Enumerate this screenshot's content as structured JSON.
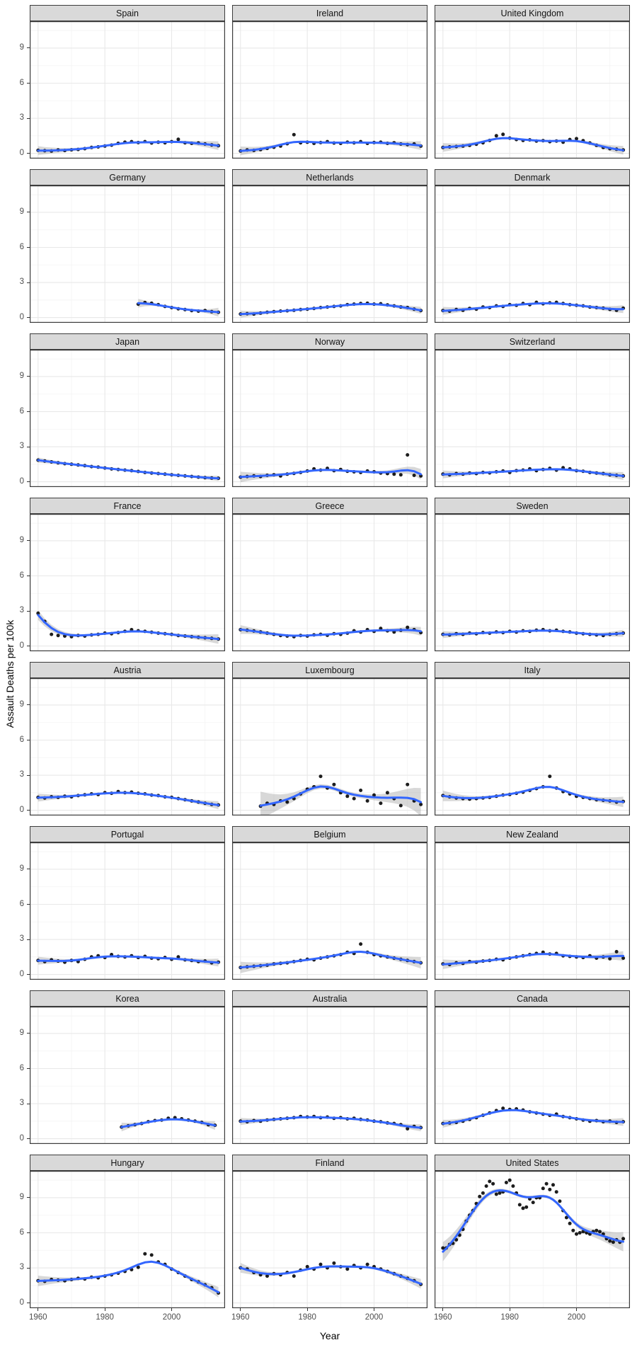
{
  "figure": {
    "ylab": "Assault Deaths per 100k",
    "xlab": "Year"
  },
  "axes": {
    "y_ticks": [
      0,
      3,
      6,
      9
    ],
    "x_ticks": [
      1960,
      1980,
      2000
    ],
    "y_minor": [
      1.5,
      4.5,
      7.5,
      10.5
    ],
    "x_minor": [
      1970,
      1990,
      2010
    ],
    "ylim": [
      -0.45,
      11.3
    ],
    "xlim": [
      1957.5,
      2016
    ]
  },
  "style": {
    "smooth_color": "#3366FF",
    "ribbon_color": "#7f7f7f",
    "point_color": "#0a0a0a",
    "strip_bg": "#d9d9d9",
    "strip_border": "#3c3c3c",
    "panel_border": "#3c3c3c",
    "grid_major": "#e8e8e8",
    "grid_minor": "#f4f4f4",
    "tick_color": "#333333",
    "tick_label_color": "#4d4d4d"
  },
  "chart_data": {
    "type": "scatter",
    "title": "",
    "xlabel": "Year",
    "ylabel": "Assault Deaths per 100k",
    "smoother": "loess with 95% CI ribbon",
    "grid": "on",
    "facet_layout": {
      "rows": 8,
      "cols": 3
    },
    "facets": [
      {
        "country": "Spain",
        "start": 1960,
        "step": 2,
        "ribbon": 0.1,
        "values": [
          0.25,
          0.22,
          0.2,
          0.28,
          0.24,
          0.3,
          0.33,
          0.4,
          0.5,
          0.55,
          0.62,
          0.7,
          0.85,
          0.95,
          1.0,
          0.92,
          1.0,
          0.88,
          0.95,
          0.9,
          1.0,
          1.2,
          0.9,
          0.85,
          0.88,
          0.8,
          0.72,
          0.65
        ]
      },
      {
        "country": "Ireland",
        "start": 1960,
        "step": 2,
        "ribbon": 0.1,
        "values": [
          0.2,
          0.28,
          0.25,
          0.32,
          0.42,
          0.52,
          0.62,
          0.82,
          1.6,
          0.9,
          0.95,
          0.85,
          0.92,
          1.0,
          0.88,
          0.85,
          0.95,
          0.9,
          1.0,
          0.85,
          0.92,
          0.95,
          0.85,
          0.9,
          0.8,
          0.75,
          0.8,
          0.62
        ]
      },
      {
        "country": "United Kingdom",
        "start": 1960,
        "step": 2,
        "ribbon": 0.1,
        "values": [
          0.5,
          0.55,
          0.58,
          0.62,
          0.68,
          0.78,
          0.9,
          1.1,
          1.5,
          1.62,
          1.3,
          1.18,
          1.1,
          1.15,
          1.05,
          1.08,
          1.0,
          1.05,
          0.95,
          1.18,
          1.25,
          1.08,
          0.88,
          0.68,
          0.5,
          0.4,
          0.35,
          0.28
        ]
      },
      {
        "country": "Germany",
        "start": 1990,
        "step": 2,
        "ribbon": 0.1,
        "values": [
          1.15,
          1.28,
          1.22,
          1.1,
          0.95,
          0.85,
          0.75,
          0.68,
          0.6,
          0.55,
          0.6,
          0.5,
          0.45
        ]
      },
      {
        "country": "Netherlands",
        "start": 1960,
        "step": 2,
        "ribbon": 0.08,
        "values": [
          0.3,
          0.33,
          0.3,
          0.38,
          0.45,
          0.5,
          0.55,
          0.58,
          0.62,
          0.68,
          0.72,
          0.78,
          0.85,
          0.9,
          0.95,
          1.0,
          1.1,
          1.15,
          1.2,
          1.22,
          1.15,
          1.18,
          1.08,
          1.0,
          0.9,
          0.85,
          0.72,
          0.6
        ]
      },
      {
        "country": "Denmark",
        "start": 1960,
        "step": 2,
        "ribbon": 0.09,
        "values": [
          0.6,
          0.55,
          0.68,
          0.62,
          0.78,
          0.72,
          0.9,
          0.85,
          1.0,
          0.95,
          1.1,
          1.05,
          1.2,
          1.1,
          1.3,
          1.18,
          1.25,
          1.3,
          1.2,
          1.1,
          1.05,
          1.0,
          0.9,
          0.85,
          0.8,
          0.7,
          0.62,
          0.8
        ]
      },
      {
        "country": "Japan",
        "start": 1960,
        "step": 2,
        "ribbon": 0.06,
        "values": [
          1.85,
          1.78,
          1.7,
          1.62,
          1.55,
          1.5,
          1.44,
          1.38,
          1.3,
          1.25,
          1.18,
          1.1,
          1.05,
          1.0,
          0.95,
          0.88,
          0.8,
          0.75,
          0.7,
          0.65,
          0.6,
          0.55,
          0.5,
          0.45,
          0.4,
          0.35,
          0.32,
          0.3
        ]
      },
      {
        "country": "Norway",
        "start": 1960,
        "step": 2,
        "ribbon": 0.12,
        "values": [
          0.4,
          0.45,
          0.5,
          0.45,
          0.55,
          0.6,
          0.5,
          0.65,
          0.72,
          0.8,
          0.92,
          1.1,
          1.0,
          1.15,
          0.95,
          1.05,
          0.9,
          0.85,
          0.8,
          0.92,
          0.85,
          0.75,
          0.7,
          0.65,
          0.6,
          2.3,
          0.55,
          0.5
        ]
      },
      {
        "country": "Switzerland",
        "start": 1960,
        "step": 2,
        "ribbon": 0.09,
        "values": [
          0.65,
          0.6,
          0.7,
          0.66,
          0.75,
          0.7,
          0.8,
          0.76,
          0.85,
          0.92,
          0.8,
          0.95,
          1.0,
          1.1,
          0.95,
          1.05,
          1.15,
          1.0,
          1.2,
          1.1,
          0.95,
          0.9,
          0.8,
          0.75,
          0.7,
          0.6,
          0.55,
          0.5
        ]
      },
      {
        "country": "France",
        "start": 1960,
        "step": 2,
        "ribbon": 0.11,
        "values": [
          2.8,
          2.1,
          1.0,
          0.9,
          0.85,
          0.8,
          0.9,
          0.85,
          0.95,
          1.0,
          1.1,
          1.05,
          1.15,
          1.25,
          1.4,
          1.3,
          1.25,
          1.18,
          1.1,
          1.05,
          1.0,
          0.9,
          0.85,
          0.8,
          0.75,
          0.7,
          0.65,
          0.6
        ]
      },
      {
        "country": "Greece",
        "start": 1960,
        "step": 2,
        "ribbon": 0.1,
        "values": [
          1.4,
          1.35,
          1.28,
          1.2,
          1.1,
          1.0,
          0.9,
          0.85,
          0.8,
          0.9,
          0.85,
          0.95,
          1.0,
          0.92,
          1.05,
          1.0,
          1.1,
          1.3,
          1.2,
          1.4,
          1.25,
          1.5,
          1.3,
          1.2,
          1.35,
          1.6,
          1.4,
          1.15
        ]
      },
      {
        "country": "Sweden",
        "start": 1960,
        "step": 2,
        "ribbon": 0.08,
        "values": [
          1.0,
          0.95,
          1.05,
          1.0,
          1.1,
          1.05,
          1.15,
          1.1,
          1.2,
          1.15,
          1.25,
          1.2,
          1.3,
          1.25,
          1.35,
          1.4,
          1.3,
          1.35,
          1.25,
          1.2,
          1.1,
          1.05,
          1.0,
          0.95,
          0.9,
          1.0,
          1.05,
          1.1
        ]
      },
      {
        "country": "Austria",
        "start": 1960,
        "step": 2,
        "ribbon": 0.09,
        "values": [
          1.1,
          1.05,
          1.15,
          1.1,
          1.2,
          1.15,
          1.25,
          1.32,
          1.4,
          1.35,
          1.5,
          1.45,
          1.6,
          1.5,
          1.55,
          1.45,
          1.4,
          1.3,
          1.25,
          1.15,
          1.1,
          1.0,
          0.9,
          0.8,
          0.7,
          0.6,
          0.5,
          0.45
        ]
      },
      {
        "country": "Luxembourg",
        "start": 1966,
        "step": 2,
        "ribbon": 0.32,
        "values": [
          0.35,
          0.6,
          0.5,
          0.8,
          0.7,
          1.0,
          1.4,
          1.8,
          2.0,
          2.9,
          1.9,
          2.2,
          1.5,
          1.2,
          1.0,
          1.7,
          0.8,
          1.3,
          0.6,
          1.5,
          1.0,
          0.4,
          2.2,
          0.8,
          0.5
        ]
      },
      {
        "country": "Italy",
        "start": 1960,
        "step": 2,
        "ribbon": 0.12,
        "values": [
          1.25,
          1.15,
          1.05,
          1.0,
          0.95,
          1.0,
          1.05,
          1.1,
          1.2,
          1.3,
          1.35,
          1.45,
          1.55,
          1.7,
          1.85,
          2.0,
          2.9,
          1.9,
          1.6,
          1.4,
          1.2,
          1.1,
          1.0,
          0.9,
          0.85,
          0.8,
          0.7,
          0.75
        ]
      },
      {
        "country": "Portugal",
        "start": 1960,
        "step": 2,
        "ribbon": 0.09,
        "values": [
          1.2,
          1.1,
          1.25,
          1.15,
          1.05,
          1.2,
          1.1,
          1.3,
          1.5,
          1.6,
          1.45,
          1.7,
          1.55,
          1.5,
          1.6,
          1.45,
          1.55,
          1.4,
          1.35,
          1.45,
          1.3,
          1.5,
          1.25,
          1.2,
          1.1,
          1.15,
          1.0,
          1.05
        ]
      },
      {
        "country": "Belgium",
        "start": 1960,
        "step": 2,
        "ribbon": 0.13,
        "values": [
          0.6,
          0.65,
          0.7,
          0.75,
          0.8,
          0.9,
          0.95,
          1.0,
          1.1,
          1.2,
          1.3,
          1.25,
          1.4,
          1.5,
          1.6,
          1.7,
          1.9,
          1.8,
          2.6,
          1.9,
          1.7,
          1.6,
          1.5,
          1.4,
          1.3,
          1.2,
          1.1,
          1.0
        ]
      },
      {
        "country": "New Zealand",
        "start": 1960,
        "step": 2,
        "ribbon": 0.11,
        "values": [
          0.9,
          0.85,
          1.0,
          0.95,
          1.1,
          1.05,
          1.15,
          1.2,
          1.3,
          1.25,
          1.4,
          1.5,
          1.6,
          1.7,
          1.8,
          1.9,
          1.75,
          1.8,
          1.6,
          1.55,
          1.5,
          1.45,
          1.6,
          1.4,
          1.5,
          1.35,
          1.95,
          1.4
        ]
      },
      {
        "country": "Korea",
        "start": 1985,
        "step": 2,
        "ribbon": 0.1,
        "values": [
          1.0,
          1.1,
          1.2,
          1.3,
          1.45,
          1.55,
          1.6,
          1.75,
          1.8,
          1.7,
          1.6,
          1.5,
          1.4,
          1.2,
          1.15
        ]
      },
      {
        "country": "Australia",
        "start": 1960,
        "step": 2,
        "ribbon": 0.08,
        "values": [
          1.5,
          1.45,
          1.55,
          1.5,
          1.6,
          1.65,
          1.7,
          1.75,
          1.8,
          1.9,
          1.85,
          1.9,
          1.8,
          1.85,
          1.75,
          1.8,
          1.7,
          1.75,
          1.65,
          1.6,
          1.5,
          1.45,
          1.35,
          1.3,
          1.2,
          0.85,
          1.05,
          0.95
        ]
      },
      {
        "country": "Canada",
        "start": 1960,
        "step": 2,
        "ribbon": 0.09,
        "values": [
          1.3,
          1.35,
          1.4,
          1.5,
          1.65,
          1.8,
          2.0,
          2.2,
          2.4,
          2.6,
          2.5,
          2.55,
          2.45,
          2.3,
          2.2,
          2.1,
          2.0,
          2.1,
          1.9,
          1.8,
          1.7,
          1.6,
          1.5,
          1.55,
          1.45,
          1.5,
          1.4,
          1.45
        ]
      },
      {
        "country": "Hungary",
        "start": 1960,
        "step": 2,
        "ribbon": 0.12,
        "values": [
          1.9,
          1.85,
          2.0,
          1.95,
          1.9,
          2.0,
          2.1,
          2.05,
          2.2,
          2.15,
          2.3,
          2.4,
          2.55,
          2.7,
          2.85,
          3.05,
          4.2,
          4.1,
          3.5,
          3.3,
          2.9,
          2.6,
          2.3,
          2.0,
          1.8,
          1.55,
          1.3,
          0.85
        ]
      },
      {
        "country": "Finland",
        "start": 1960,
        "step": 2,
        "ribbon": 0.11,
        "values": [
          3.0,
          2.9,
          2.6,
          2.4,
          2.3,
          2.5,
          2.4,
          2.6,
          2.3,
          2.8,
          3.1,
          2.9,
          3.3,
          3.0,
          3.4,
          3.1,
          2.9,
          3.2,
          3.0,
          3.3,
          3.1,
          2.9,
          2.7,
          2.5,
          2.3,
          2.1,
          1.9,
          1.6
        ]
      },
      {
        "country": "United States",
        "start": 1960,
        "step": 1,
        "ribbon": 0.22,
        "values": [
          4.7,
          4.7,
          5.0,
          5.1,
          5.4,
          5.8,
          6.3,
          7.0,
          7.5,
          7.9,
          8.5,
          9.1,
          9.4,
          10.0,
          10.4,
          10.2,
          9.3,
          9.4,
          9.5,
          10.3,
          10.5,
          10.0,
          9.4,
          8.4,
          8.1,
          8.2,
          8.9,
          8.6,
          9.0,
          9.0,
          9.8,
          10.2,
          9.7,
          10.1,
          9.5,
          8.7,
          7.9,
          7.3,
          6.8,
          6.2,
          5.9,
          6.0,
          6.1,
          6.0,
          5.9,
          6.1,
          6.2,
          6.1,
          5.9,
          5.5,
          5.3,
          5.2,
          5.4,
          5.2,
          5.5
        ]
      }
    ]
  }
}
